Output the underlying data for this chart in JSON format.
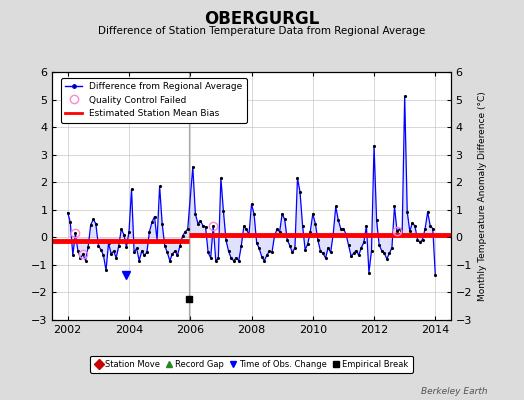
{
  "title": "OBERGURGL",
  "subtitle": "Difference of Station Temperature Data from Regional Average",
  "ylabel_right": "Monthly Temperature Anomaly Difference (°C)",
  "ylim": [
    -3,
    6
  ],
  "xlim": [
    2001.5,
    2014.5
  ],
  "yticks": [
    -3,
    -2,
    -1,
    0,
    1,
    2,
    3,
    4,
    5,
    6
  ],
  "xticks": [
    2002,
    2004,
    2006,
    2008,
    2010,
    2012,
    2014
  ],
  "bias_before_2006": -0.15,
  "bias_after_2006": 0.07,
  "vertical_line_x": 2005.97,
  "empirical_break_x": 2005.97,
  "empirical_break_y": -2.25,
  "time_obs_change_x": 2003.9,
  "time_obs_change_y": -1.35,
  "qc_failed_points": [
    [
      2002.25,
      0.15
    ],
    [
      2002.5,
      -0.62
    ],
    [
      2006.75,
      0.42
    ],
    [
      2012.75,
      0.22
    ]
  ],
  "background_color": "#dcdcdc",
  "plot_bg_color": "#ffffff",
  "line_color": "#0000ff",
  "fill_color": "#9999ff",
  "bias_color": "#ff0000",
  "grid_color": "#c8c8c8",
  "watermark": "Berkeley Earth",
  "series": [
    [
      2002.0,
      0.9
    ],
    [
      2002.083,
      0.55
    ],
    [
      2002.167,
      -0.65
    ],
    [
      2002.25,
      0.15
    ],
    [
      2002.333,
      -0.5
    ],
    [
      2002.417,
      -0.75
    ],
    [
      2002.5,
      -0.62
    ],
    [
      2002.583,
      -0.85
    ],
    [
      2002.667,
      -0.35
    ],
    [
      2002.75,
      0.45
    ],
    [
      2002.833,
      0.65
    ],
    [
      2002.917,
      0.5
    ],
    [
      2003.0,
      -0.3
    ],
    [
      2003.083,
      -0.45
    ],
    [
      2003.167,
      -0.65
    ],
    [
      2003.25,
      -1.2
    ],
    [
      2003.333,
      -0.2
    ],
    [
      2003.417,
      -0.6
    ],
    [
      2003.5,
      -0.5
    ],
    [
      2003.583,
      -0.75
    ],
    [
      2003.667,
      -0.3
    ],
    [
      2003.75,
      0.3
    ],
    [
      2003.833,
      0.1
    ],
    [
      2003.917,
      -0.35
    ],
    [
      2004.0,
      0.2
    ],
    [
      2004.083,
      1.75
    ],
    [
      2004.167,
      -0.55
    ],
    [
      2004.25,
      -0.4
    ],
    [
      2004.333,
      -0.85
    ],
    [
      2004.417,
      -0.5
    ],
    [
      2004.5,
      -0.65
    ],
    [
      2004.583,
      -0.55
    ],
    [
      2004.667,
      0.2
    ],
    [
      2004.75,
      0.55
    ],
    [
      2004.833,
      0.75
    ],
    [
      2004.917,
      -0.1
    ],
    [
      2005.0,
      1.85
    ],
    [
      2005.083,
      0.5
    ],
    [
      2005.167,
      -0.3
    ],
    [
      2005.25,
      -0.55
    ],
    [
      2005.333,
      -0.85
    ],
    [
      2005.417,
      -0.6
    ],
    [
      2005.5,
      -0.5
    ],
    [
      2005.583,
      -0.65
    ],
    [
      2005.667,
      -0.3
    ],
    [
      2005.75,
      0.05
    ],
    [
      2005.833,
      0.2
    ],
    [
      2005.917,
      0.3
    ],
    [
      2006.083,
      2.55
    ],
    [
      2006.167,
      0.85
    ],
    [
      2006.25,
      0.5
    ],
    [
      2006.333,
      0.6
    ],
    [
      2006.417,
      0.42
    ],
    [
      2006.5,
      0.38
    ],
    [
      2006.583,
      -0.55
    ],
    [
      2006.667,
      -0.75
    ],
    [
      2006.75,
      0.42
    ],
    [
      2006.833,
      -0.85
    ],
    [
      2006.917,
      -0.75
    ],
    [
      2007.0,
      2.15
    ],
    [
      2007.083,
      0.95
    ],
    [
      2007.167,
      -0.1
    ],
    [
      2007.25,
      -0.5
    ],
    [
      2007.333,
      -0.75
    ],
    [
      2007.417,
      -0.85
    ],
    [
      2007.5,
      -0.75
    ],
    [
      2007.583,
      -0.85
    ],
    [
      2007.667,
      -0.3
    ],
    [
      2007.75,
      0.4
    ],
    [
      2007.833,
      0.3
    ],
    [
      2007.917,
      0.1
    ],
    [
      2008.0,
      1.2
    ],
    [
      2008.083,
      0.85
    ],
    [
      2008.167,
      -0.2
    ],
    [
      2008.25,
      -0.4
    ],
    [
      2008.333,
      -0.7
    ],
    [
      2008.417,
      -0.85
    ],
    [
      2008.5,
      -0.65
    ],
    [
      2008.583,
      -0.5
    ],
    [
      2008.667,
      -0.55
    ],
    [
      2008.75,
      0.05
    ],
    [
      2008.833,
      0.3
    ],
    [
      2008.917,
      0.2
    ],
    [
      2009.0,
      0.85
    ],
    [
      2009.083,
      0.65
    ],
    [
      2009.167,
      -0.1
    ],
    [
      2009.25,
      -0.3
    ],
    [
      2009.333,
      -0.55
    ],
    [
      2009.417,
      -0.38
    ],
    [
      2009.5,
      2.15
    ],
    [
      2009.583,
      1.65
    ],
    [
      2009.667,
      0.42
    ],
    [
      2009.75,
      -0.45
    ],
    [
      2009.833,
      -0.25
    ],
    [
      2009.917,
      0.2
    ],
    [
      2010.0,
      0.85
    ],
    [
      2010.083,
      0.5
    ],
    [
      2010.167,
      -0.1
    ],
    [
      2010.25,
      -0.5
    ],
    [
      2010.333,
      -0.58
    ],
    [
      2010.417,
      -0.75
    ],
    [
      2010.5,
      -0.38
    ],
    [
      2010.583,
      -0.55
    ],
    [
      2010.667,
      0.12
    ],
    [
      2010.75,
      1.12
    ],
    [
      2010.833,
      0.62
    ],
    [
      2010.917,
      0.3
    ],
    [
      2011.0,
      0.32
    ],
    [
      2011.083,
      0.12
    ],
    [
      2011.167,
      -0.28
    ],
    [
      2011.25,
      -0.68
    ],
    [
      2011.333,
      -0.58
    ],
    [
      2011.417,
      -0.48
    ],
    [
      2011.5,
      -0.65
    ],
    [
      2011.583,
      -0.38
    ],
    [
      2011.667,
      -0.18
    ],
    [
      2011.75,
      0.42
    ],
    [
      2011.833,
      -1.28
    ],
    [
      2011.917,
      -0.48
    ],
    [
      2012.0,
      3.32
    ],
    [
      2012.083,
      0.62
    ],
    [
      2012.167,
      -0.28
    ],
    [
      2012.25,
      -0.48
    ],
    [
      2012.333,
      -0.58
    ],
    [
      2012.417,
      -0.78
    ],
    [
      2012.5,
      -0.58
    ],
    [
      2012.583,
      -0.38
    ],
    [
      2012.667,
      1.12
    ],
    [
      2012.75,
      0.22
    ],
    [
      2012.833,
      0.32
    ],
    [
      2012.917,
      0.12
    ],
    [
      2013.0,
      5.12
    ],
    [
      2013.083,
      0.92
    ],
    [
      2013.167,
      0.22
    ],
    [
      2013.25,
      0.52
    ],
    [
      2013.333,
      0.42
    ],
    [
      2013.417,
      -0.08
    ],
    [
      2013.5,
      -0.18
    ],
    [
      2013.583,
      -0.08
    ],
    [
      2013.667,
      0.32
    ],
    [
      2013.75,
      0.92
    ],
    [
      2013.833,
      0.42
    ],
    [
      2013.917,
      0.32
    ],
    [
      2014.0,
      -1.38
    ]
  ]
}
